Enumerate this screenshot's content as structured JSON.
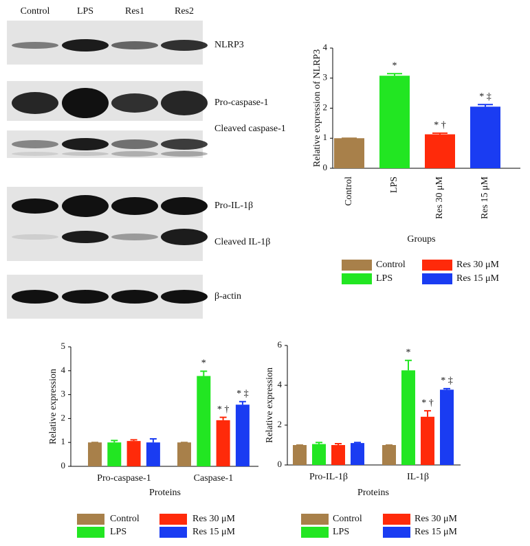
{
  "blot": {
    "lanes": [
      "Control",
      "LPS",
      "Res1",
      "Res2"
    ],
    "bands": [
      "NLRP3",
      "Pro-caspase-1",
      "Cleaved caspase-1",
      "Pro-IL-1β",
      "Cleaved IL-1β",
      "β-actin"
    ]
  },
  "chart_data": [
    {
      "type": "bar",
      "ylabel": "Relative expression of NLRP3",
      "xlabel": "Groups",
      "categories": [
        "Control",
        "LPS",
        "Res 30 μM",
        "Res 15 μM"
      ],
      "values": [
        1,
        3.08,
        1.13,
        2.05
      ],
      "errors": [
        0,
        0.07,
        0.04,
        0.07
      ],
      "annotations": [
        null,
        "*",
        "* †",
        "* ‡"
      ],
      "colors": [
        "#a8804a",
        "#22e622",
        "#ff2a0a",
        "#1a3cf2"
      ],
      "ylim": [
        0,
        4
      ],
      "yticks": [
        0,
        1,
        2,
        3,
        4
      ]
    },
    {
      "type": "grouped_bar",
      "ylabel": "Relative expression",
      "xlabel": "Proteins",
      "categories": [
        "Pro-caspase-1",
        "Caspase-1"
      ],
      "series": [
        {
          "name": "Control",
          "color": "#a8804a",
          "values": [
            1,
            1
          ],
          "errors": [
            0,
            0
          ],
          "annotations": [
            null,
            null
          ]
        },
        {
          "name": "LPS",
          "color": "#22e622",
          "values": [
            1.0,
            3.78
          ],
          "errors": [
            0.08,
            0.2
          ],
          "annotations": [
            null,
            "*"
          ]
        },
        {
          "name": "Res 30 μM",
          "color": "#ff2a0a",
          "values": [
            1.06,
            1.93
          ],
          "errors": [
            0.05,
            0.12
          ],
          "annotations": [
            null,
            "* †"
          ]
        },
        {
          "name": "Res 15 μM",
          "color": "#1a3cf2",
          "values": [
            1.0,
            2.58
          ],
          "errors": [
            0.15,
            0.13
          ],
          "annotations": [
            null,
            "* ‡"
          ]
        }
      ],
      "ylim": [
        0,
        5
      ],
      "yticks": [
        0,
        1,
        2,
        3,
        4,
        5
      ]
    },
    {
      "type": "grouped_bar",
      "ylabel": "Relative expression",
      "xlabel": "Proteins",
      "categories": [
        "Pro-IL-1β",
        "IL-1β"
      ],
      "series": [
        {
          "name": "Control",
          "color": "#a8804a",
          "values": [
            1,
            1
          ],
          "errors": [
            0,
            0
          ],
          "annotations": [
            null,
            null
          ]
        },
        {
          "name": "LPS",
          "color": "#22e622",
          "values": [
            1.05,
            4.75
          ],
          "errors": [
            0.08,
            0.5
          ],
          "annotations": [
            null,
            "*"
          ]
        },
        {
          "name": "Res 30 μM",
          "color": "#ff2a0a",
          "values": [
            1.0,
            2.42
          ],
          "errors": [
            0.07,
            0.3
          ],
          "annotations": [
            null,
            "* †"
          ]
        },
        {
          "name": "Res 15 μM",
          "color": "#1a3cf2",
          "values": [
            1.1,
            3.78
          ],
          "errors": [
            0.03,
            0.05
          ],
          "annotations": [
            null,
            "* ‡"
          ]
        }
      ],
      "ylim": [
        0,
        6
      ],
      "yticks": [
        0,
        2,
        4,
        6
      ]
    }
  ]
}
